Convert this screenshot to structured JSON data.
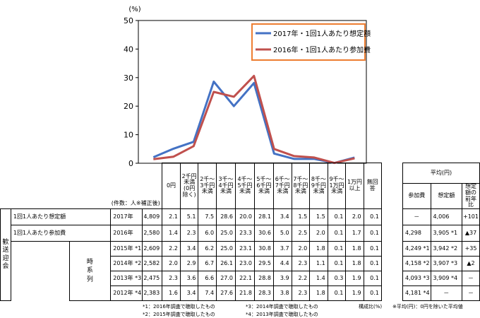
{
  "chart_data": {
    "type": "line",
    "y_unit": "(%)",
    "ylim": [
      0,
      50
    ],
    "yticks": [
      0,
      10,
      20,
      30,
      40,
      50
    ],
    "grid": false,
    "legend_position": "top-right",
    "categories": [
      "0円",
      "2千円未満(0円除く)",
      "2千～3千円未満",
      "3千～4千円未満",
      "4千～5千円未満",
      "5千～6千円未満",
      "6千～7千円未満",
      "7千～8千円未満",
      "8千～9千円未満",
      "9千～1万円未満",
      "1万円以上"
    ],
    "series": [
      {
        "name": "2017年・1回1人あたり想定額",
        "color": "#4472C4",
        "values": [
          2.1,
          5.1,
          7.5,
          28.6,
          20.0,
          28.1,
          3.4,
          1.5,
          1.5,
          0.1,
          2.0
        ]
      },
      {
        "name": "2016年・1回1人あたり参加費",
        "color": "#C0504D",
        "values": [
          1.4,
          2.3,
          6.0,
          25.0,
          23.3,
          30.6,
          5.0,
          2.5,
          2.0,
          0.1,
          1.7
        ]
      }
    ]
  },
  "table": {
    "count_header": "(件数：人※補正後)",
    "col_headers": [
      "0円",
      "2千円未満(0円除く)",
      "2千～3千円未満",
      "3千～4千円未満",
      "4千～5千円未満",
      "5千～6千円未満",
      "6千～7千円未満",
      "7千～8千円未満",
      "8千～9千円未満",
      "9千～1万円未満",
      "1万円以上",
      "無回答"
    ],
    "col_headers_display": [
      "0円",
      [
        "2千円",
        "未満",
        "(0円",
        "除く)"
      ],
      [
        "2千～",
        "3千円",
        "未満"
      ],
      [
        "3千～",
        "4千円",
        "未満"
      ],
      [
        "4千～",
        "5千円",
        "未満"
      ],
      [
        "5千～",
        "6千円",
        "未満"
      ],
      [
        "6千～",
        "7千円",
        "未満"
      ],
      [
        "7千～",
        "8千円",
        "未満"
      ],
      [
        "8千～",
        "9千円",
        "未満"
      ],
      [
        "9千～",
        "1万円",
        "未満"
      ],
      [
        "1万円",
        "以上"
      ],
      [
        "無回",
        "答"
      ]
    ],
    "avg_group_header": "平均(円)",
    "avg_headers": [
      "参加費",
      "想定額",
      "想定額の前年比"
    ],
    "avg_headers_display": [
      "参加費",
      "想定額",
      [
        "想定額の",
        "前年比"
      ]
    ],
    "side_label": "歓送迎会",
    "series_label": "時系列",
    "rows": [
      {
        "label": "1回1人あたり想定額",
        "year": "2017年",
        "n": "4,809",
        "values": [
          "2.1",
          "5.1",
          "7.5",
          "28.6",
          "20.0",
          "28.1",
          "3.4",
          "1.5",
          "1.5",
          "0.1",
          "2.0",
          "0.1"
        ],
        "fee": "－",
        "assumed": "4,006",
        "yoy": "+101"
      },
      {
        "label": "1回1人あたり参加費",
        "year": "2016年",
        "n": "2,580",
        "values": [
          "1.4",
          "2.3",
          "6.0",
          "25.0",
          "23.3",
          "30.6",
          "5.0",
          "2.5",
          "2.0",
          "0.1",
          "1.7",
          "0.1"
        ],
        "fee": "4,298",
        "assumed": "3,905 *1",
        "yoy": "▲37"
      },
      {
        "label": "",
        "year": "2015年 *1",
        "n": "2,609",
        "values": [
          "2.2",
          "3.4",
          "6.2",
          "25.0",
          "23.1",
          "30.8",
          "3.7",
          "2.0",
          "1.8",
          "0.1",
          "1.8",
          "0.1"
        ],
        "fee": "4,249 *1",
        "assumed": "3,942 *2",
        "yoy": "+35"
      },
      {
        "label": "",
        "year": "2014年 *2",
        "n": "2,582",
        "values": [
          "2.0",
          "2.9",
          "6.7",
          "26.1",
          "23.0",
          "29.5",
          "4.4",
          "2.3",
          "1.1",
          "0.1",
          "1.8",
          "0.1"
        ],
        "fee": "4,158 *2",
        "assumed": "3,907 *3",
        "yoy": "▲2"
      },
      {
        "label": "",
        "year": "2013年 *3",
        "n": "2,475",
        "values": [
          "2.3",
          "3.6",
          "6.6",
          "27.0",
          "22.1",
          "28.8",
          "3.9",
          "2.2",
          "1.4",
          "0.3",
          "1.9",
          "0.1"
        ],
        "fee": "4,093 *3",
        "assumed": "3,909 *4",
        "yoy": "－"
      },
      {
        "label": "",
        "year": "2012年 *4",
        "n": "2,383",
        "values": [
          "1.6",
          "3.4",
          "7.4",
          "27.6",
          "21.8",
          "28.3",
          "3.8",
          "2.3",
          "1.8",
          "0.1",
          "1.9",
          "0.1"
        ],
        "fee": "4,181 *4",
        "assumed": "－",
        "yoy": "－"
      }
    ]
  },
  "footnotes": {
    "n1": "*1：2016年調査で聴取したもの",
    "n2": "*2：2015年調査で聴取したもの",
    "n3": "*3：2014年調査で聴取したもの",
    "n4": "*4：2013年調査で聴取したもの",
    "composition": "構成比(%)",
    "avg_note": "※平均(円)：0円を除いた平均値"
  }
}
